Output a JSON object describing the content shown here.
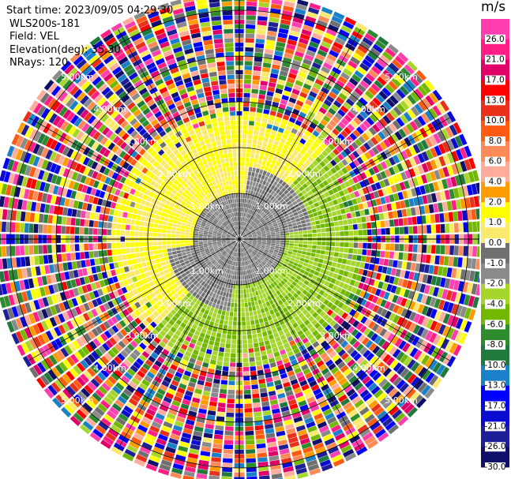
{
  "header": {
    "start_time": "Start time: 2023/09/05 04:29:30",
    "instrument": "WLS200s-181",
    "field": "Field: VEL",
    "elevation": "Elevation(deg): 35.30",
    "nrays": "NRays: 120"
  },
  "chart_data": {
    "type": "heatmap",
    "projection": "polar-ppi",
    "field": "VEL",
    "units": "m/s",
    "rays": 120,
    "range_rings_km": [
      1.0,
      2.0,
      3.0,
      4.0,
      5.0
    ],
    "ring_labels": [
      "1.00km",
      "2.00km",
      "3.00km",
      "4.00km",
      "5.00km"
    ],
    "spoke_angles_deg": [
      0,
      30,
      60,
      90,
      120,
      150,
      180,
      210,
      240,
      270,
      300,
      330
    ],
    "max_range_km": 5.3,
    "coherent_max_range_km": 2.8,
    "pattern": "Near-zero velocities (grey) within about 1 km, positive velocities (yellow) on the north-west side and negative velocities (green) on the south-east side out to about 2.8 km; beyond that mostly noise spanning the full colour scale.",
    "colorbar": {
      "title": "m/s",
      "tick_labels": [
        "26.0",
        "21.0",
        "17.0",
        "13.0",
        "10.0",
        "8.0",
        "6.0",
        "4.0",
        "2.0",
        "1.0",
        "0.0",
        "-1.0",
        "-2.0",
        "-4.0",
        "-6.0",
        "-8.0",
        "-10.0",
        "-13.0",
        "-17.0",
        "-21.0",
        "-26.0",
        "-30.0"
      ],
      "bin_edges": [
        30,
        26,
        21,
        17,
        13,
        10,
        8,
        6,
        4,
        2,
        1,
        0,
        -1,
        -2,
        -4,
        -6,
        -8,
        -10,
        -13,
        -17,
        -21,
        -26,
        -30
      ],
      "colors": [
        "#ff3fb0",
        "#ff1e86",
        "#e0006a",
        "#ff0000",
        "#e8301a",
        "#ff5a12",
        "#ff8a58",
        "#ffac9c",
        "#ff9c00",
        "#ffff00",
        "#fbe96e",
        "#707070",
        "#8a8a8a",
        "#a6d62c",
        "#73b800",
        "#2e8b2e",
        "#1f7a3c",
        "#1a80c8",
        "#0000ff",
        "#0a0ad0",
        "#1e1e96",
        "#10106a"
      ]
    }
  }
}
